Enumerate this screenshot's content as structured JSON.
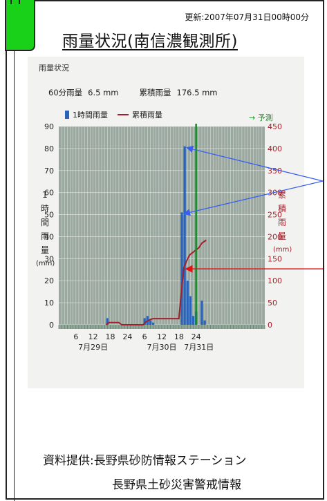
{
  "header": {
    "updated": "更新:2007年07月31日00時00分",
    "title": "雨量状況(南信濃観測所)"
  },
  "panel": {
    "title": "雨量状況",
    "rain60_label": "60分雨量",
    "rain60_value": "6.5 mm",
    "cum_label": "累積雨量",
    "cum_value": "176.5 mm",
    "legend_hourly": "1時間雨量",
    "legend_cumulative": "累積雨量",
    "forecast": "→ 予測",
    "ylabel_left": [
      "1",
      "時",
      "間",
      "雨",
      "量"
    ],
    "ylabel_left_unit": "(mm)",
    "ylabel_right": [
      "累",
      "積",
      "雨",
      "量"
    ],
    "ylabel_right_unit": "(mm)"
  },
  "footer": {
    "credit1": "資料提供:長野県砂防情報ステーション",
    "credit2": "長野県土砂災害警戒情報"
  },
  "chart_data": {
    "type": "bar",
    "left_axis": {
      "min": 0,
      "max": 90,
      "ticks": [
        0,
        10,
        20,
        30,
        40,
        50,
        60,
        70,
        80,
        90
      ]
    },
    "right_axis": {
      "min": 0,
      "max": 450,
      "ticks": [
        0,
        50,
        100,
        150,
        200,
        250,
        300,
        350,
        400,
        450
      ]
    },
    "hour_range": [
      0,
      72
    ],
    "x_hour_ticks": [
      {
        "hour": 6,
        "label": "6"
      },
      {
        "hour": 12,
        "label": "12"
      },
      {
        "hour": 18,
        "label": "18"
      },
      {
        "hour": 24,
        "label": "24"
      },
      {
        "hour": 30,
        "label": "6"
      },
      {
        "hour": 36,
        "label": "12"
      },
      {
        "hour": 42,
        "label": "18"
      },
      {
        "hour": 48,
        "label": "24"
      }
    ],
    "x_day_labels": [
      {
        "hour": 12,
        "label": "7月29日"
      },
      {
        "hour": 36,
        "label": "7月30日"
      },
      {
        "hour": 49,
        "label": "7月31日"
      }
    ],
    "forecast_start_hour": 48,
    "hourly_rain": [
      {
        "hour": 17,
        "value": 3
      },
      {
        "hour": 30,
        "value": 3
      },
      {
        "hour": 31,
        "value": 4
      },
      {
        "hour": 32,
        "value": 2
      },
      {
        "hour": 33,
        "value": 1
      },
      {
        "hour": 43,
        "value": 51
      },
      {
        "hour": 44,
        "value": 81
      },
      {
        "hour": 45,
        "value": 20
      },
      {
        "hour": 46,
        "value": 13
      },
      {
        "hour": 47,
        "value": 4
      },
      {
        "hour": 48,
        "value": 6
      },
      {
        "hour": 50,
        "value": 11
      },
      {
        "hour": 51,
        "value": 2
      }
    ],
    "cumulative_rain": [
      {
        "hour": 16.5,
        "value": 0
      },
      {
        "hour": 17.5,
        "value": 5
      },
      {
        "hour": 21,
        "value": 5
      },
      {
        "hour": 22,
        "value": 0
      },
      {
        "hour": 29.5,
        "value": 0
      },
      {
        "hour": 30.5,
        "value": 7
      },
      {
        "hour": 32,
        "value": 12
      },
      {
        "hour": 33,
        "value": 14
      },
      {
        "hour": 40,
        "value": 14
      },
      {
        "hour": 42,
        "value": 14
      },
      {
        "hour": 42.7,
        "value": 65
      },
      {
        "hour": 43.7,
        "value": 130
      },
      {
        "hour": 44.7,
        "value": 145
      },
      {
        "hour": 45.7,
        "value": 158
      },
      {
        "hour": 47,
        "value": 165
      },
      {
        "hour": 48,
        "value": 170
      },
      {
        "hour": 49,
        "value": 175
      },
      {
        "hour": 50,
        "value": 185
      },
      {
        "hour": 51.5,
        "value": 192
      }
    ],
    "annotation_colors": {
      "blue": "#3a5ff0",
      "red": "#e81010"
    },
    "colors": {
      "bar": "#2a63b8",
      "line": "#a3202a",
      "forecast_line": "#1a8a2a",
      "plot_bg": "#9aa8a0",
      "grid": "#d7dcd6"
    }
  }
}
